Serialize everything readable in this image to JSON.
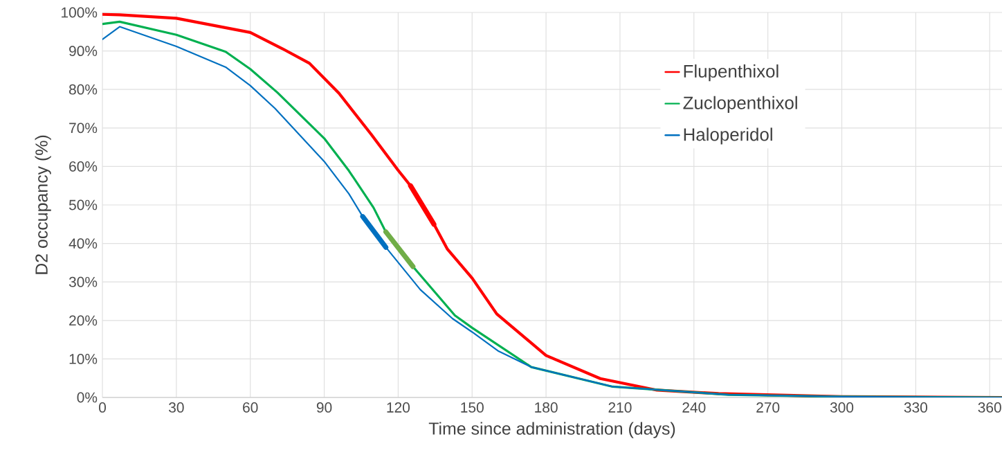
{
  "chart_data": {
    "type": "line",
    "xlabel": "Time since administration (days)",
    "ylabel": "D2 occupancy (%)",
    "xlim": [
      0,
      365
    ],
    "ylim": [
      0,
      100
    ],
    "xticks": [
      0,
      30,
      60,
      90,
      120,
      150,
      180,
      210,
      240,
      270,
      300,
      330,
      360
    ],
    "yticks": [
      {
        "value": 0,
        "label": "0%"
      },
      {
        "value": 10,
        "label": "10%"
      },
      {
        "value": 20,
        "label": "20%"
      },
      {
        "value": 30,
        "label": "30%"
      },
      {
        "value": 40,
        "label": "40%"
      },
      {
        "value": 50,
        "label": "50%"
      },
      {
        "value": 60,
        "label": "60%"
      },
      {
        "value": 70,
        "label": "70%"
      },
      {
        "value": 80,
        "label": "80%"
      },
      {
        "value": 90,
        "label": "90%"
      },
      {
        "value": 100,
        "label": "100%"
      }
    ],
    "grid": true,
    "legend": "top right",
    "marker": "none",
    "series": [
      {
        "name": "Flupenthixol",
        "color": "#ff0000",
        "x": [
          0,
          7,
          30,
          60,
          73,
          84,
          96,
          109,
          120,
          125,
          134.5,
          140,
          150,
          160,
          180,
          202,
          225,
          250,
          300,
          365
        ],
        "values": [
          99.5,
          99.4,
          98.5,
          94.8,
          90.6,
          86.8,
          79,
          68.4,
          59,
          55,
          45,
          38.5,
          31,
          21.7,
          10.9,
          4.9,
          1.9,
          1,
          0.2,
          0
        ]
      },
      {
        "name": "Zuclopenthixol",
        "color": "#00b050",
        "x": [
          0,
          7,
          30,
          50,
          60,
          71,
          90,
          100,
          110,
          115,
          126,
          143,
          150,
          174,
          207,
          254,
          300,
          365
        ],
        "values": [
          97,
          97.6,
          94.2,
          89.8,
          85.3,
          79.2,
          67.3,
          58.9,
          49.3,
          43,
          34,
          21.3,
          18.1,
          7.9,
          2.8,
          0.7,
          0.2,
          0
        ]
      },
      {
        "name": "Haloperidol",
        "color": "#0070c0",
        "x": [
          0,
          7,
          30,
          50,
          60,
          70,
          90,
          100,
          105.6,
          115,
          129,
          142,
          150,
          160.5,
          174,
          207,
          254,
          300,
          365
        ],
        "values": [
          93,
          96.3,
          91.2,
          85.8,
          81,
          75.1,
          61.3,
          52.9,
          47,
          39,
          28,
          20.5,
          17,
          12.1,
          7.9,
          2.8,
          0.7,
          0.2,
          0
        ]
      },
      {
        "color": "#ff0000",
        "x": [
          125,
          134.5
        ],
        "values": [
          55,
          45
        ]
      },
      {
        "color": "#70ad47",
        "x": [
          115,
          126
        ],
        "values": [
          43,
          34
        ]
      },
      {
        "color": "#0070c0",
        "x": [
          105.6,
          115
        ],
        "values": [
          47,
          39
        ]
      }
    ]
  }
}
